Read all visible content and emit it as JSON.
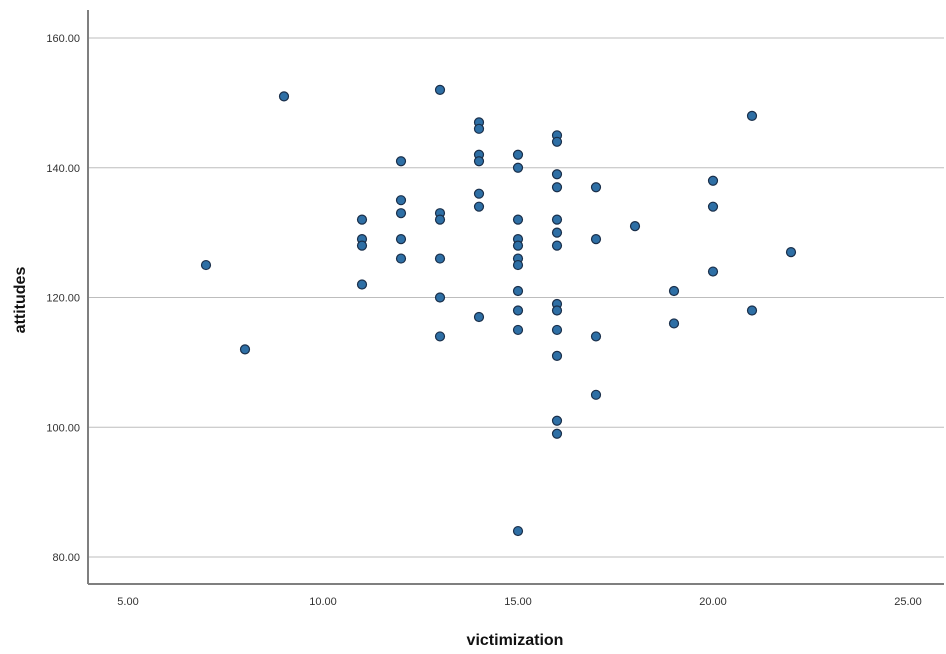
{
  "chart_data": {
    "type": "scatter",
    "title": "",
    "xlabel": "victimization",
    "ylabel": "attitudes",
    "xlim": [
      4,
      26
    ],
    "ylim": [
      79,
      163
    ],
    "x_ticks": [
      "5.00",
      "10.00",
      "15.00",
      "20.00",
      "25.00"
    ],
    "y_ticks": [
      "80.00",
      "100.00",
      "120.00",
      "140.00",
      "160.00"
    ],
    "grid": "horizontal",
    "legend": "none",
    "colors": {
      "point": "#2e6fa5",
      "point_edge": "#1a2f4a",
      "grid": "#bdbdbd",
      "axis": "#7f7f7f"
    },
    "points": [
      {
        "x": 7,
        "y": 125
      },
      {
        "x": 8,
        "y": 112
      },
      {
        "x": 9,
        "y": 151
      },
      {
        "x": 11,
        "y": 132
      },
      {
        "x": 11,
        "y": 129
      },
      {
        "x": 11,
        "y": 128
      },
      {
        "x": 11,
        "y": 122
      },
      {
        "x": 12,
        "y": 141
      },
      {
        "x": 12,
        "y": 135
      },
      {
        "x": 12,
        "y": 133
      },
      {
        "x": 12,
        "y": 129
      },
      {
        "x": 12,
        "y": 126
      },
      {
        "x": 13,
        "y": 152
      },
      {
        "x": 13,
        "y": 133
      },
      {
        "x": 13,
        "y": 132
      },
      {
        "x": 13,
        "y": 126
      },
      {
        "x": 13,
        "y": 120
      },
      {
        "x": 13,
        "y": 114
      },
      {
        "x": 14,
        "y": 147
      },
      {
        "x": 14,
        "y": 146
      },
      {
        "x": 14,
        "y": 142
      },
      {
        "x": 14,
        "y": 141
      },
      {
        "x": 14,
        "y": 136
      },
      {
        "x": 14,
        "y": 134
      },
      {
        "x": 14,
        "y": 117
      },
      {
        "x": 15,
        "y": 142
      },
      {
        "x": 15,
        "y": 140
      },
      {
        "x": 15,
        "y": 132
      },
      {
        "x": 15,
        "y": 129
      },
      {
        "x": 15,
        "y": 128
      },
      {
        "x": 15,
        "y": 126
      },
      {
        "x": 15,
        "y": 125
      },
      {
        "x": 15,
        "y": 121
      },
      {
        "x": 15,
        "y": 118
      },
      {
        "x": 15,
        "y": 115
      },
      {
        "x": 15,
        "y": 84
      },
      {
        "x": 16,
        "y": 145
      },
      {
        "x": 16,
        "y": 144
      },
      {
        "x": 16,
        "y": 139
      },
      {
        "x": 16,
        "y": 137
      },
      {
        "x": 16,
        "y": 132
      },
      {
        "x": 16,
        "y": 130
      },
      {
        "x": 16,
        "y": 128
      },
      {
        "x": 16,
        "y": 119
      },
      {
        "x": 16,
        "y": 118
      },
      {
        "x": 16,
        "y": 115
      },
      {
        "x": 16,
        "y": 111
      },
      {
        "x": 16,
        "y": 101
      },
      {
        "x": 16,
        "y": 99
      },
      {
        "x": 17,
        "y": 137
      },
      {
        "x": 17,
        "y": 129
      },
      {
        "x": 17,
        "y": 114
      },
      {
        "x": 17,
        "y": 105
      },
      {
        "x": 18,
        "y": 131
      },
      {
        "x": 19,
        "y": 121
      },
      {
        "x": 19,
        "y": 116
      },
      {
        "x": 20,
        "y": 138
      },
      {
        "x": 20,
        "y": 134
      },
      {
        "x": 20,
        "y": 124
      },
      {
        "x": 21,
        "y": 148
      },
      {
        "x": 21,
        "y": 118
      },
      {
        "x": 22,
        "y": 127
      }
    ]
  }
}
